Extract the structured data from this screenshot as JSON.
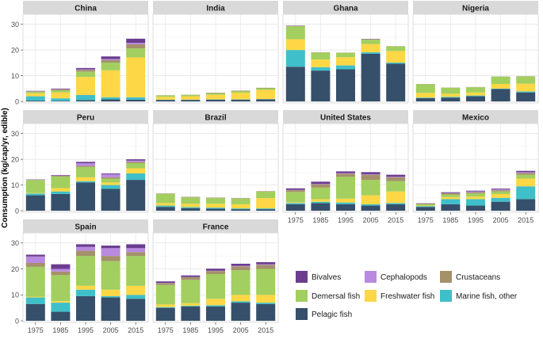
{
  "chart_data": {
    "type": "bar",
    "stacked": true,
    "faceted": true,
    "ylabel": "Consumption (kg/cap/yr, edible)",
    "xlabel": "",
    "categories": [
      "1975",
      "1985",
      "1995",
      "2005",
      "2015"
    ],
    "y_ticks": [
      "0",
      "10",
      "20",
      "30"
    ],
    "ylim": [
      0,
      30
    ],
    "grid": true,
    "legend_position": "bottom-right",
    "series_order": [
      "Pelagic fish",
      "Marine fish, other",
      "Freshwater fish",
      "Demersal fish",
      "Crustaceans",
      "Cephalopods",
      "Bivalves"
    ],
    "colors": {
      "Bivalves": "#6a3d8f",
      "Cephalopods": "#b98ae0",
      "Crustaceans": "#a4916a",
      "Demersal fish": "#a2cf5f",
      "Freshwater fish": "#fdd745",
      "Marine fish, other": "#3fbfc9",
      "Pelagic fish": "#36506b"
    },
    "legend": [
      {
        "name": "Bivalves",
        "color": "#6a3d8f"
      },
      {
        "name": "Cephalopods",
        "color": "#b98ae0"
      },
      {
        "name": "Crustaceans",
        "color": "#a4916a"
      },
      {
        "name": "Demersal fish",
        "color": "#a2cf5f"
      },
      {
        "name": "Freshwater fish",
        "color": "#fdd745"
      },
      {
        "name": "Marine fish, other",
        "color": "#3fbfc9"
      },
      {
        "name": "Pelagic fish",
        "color": "#36506b"
      }
    ],
    "panels": [
      {
        "title": "China",
        "data": [
          {
            "Pelagic fish": 0.3,
            "Marine fish, other": 1.7,
            "Freshwater fish": 1.2,
            "Demersal fish": 0.5,
            "Crustaceans": 0.2,
            "Cephalopods": 0.1,
            "Bivalves": 0.1
          },
          {
            "Pelagic fish": 0.2,
            "Marine fish, other": 1.0,
            "Freshwater fish": 2.3,
            "Demersal fish": 0.8,
            "Crustaceans": 0.4,
            "Cephalopods": 0.1,
            "Bivalves": 0.2
          },
          {
            "Pelagic fish": 0.5,
            "Marine fish, other": 2.0,
            "Freshwater fish": 7.0,
            "Demersal fish": 2.1,
            "Crustaceans": 0.7,
            "Cephalopods": 0.2,
            "Bivalves": 0.5
          },
          {
            "Pelagic fish": 0.8,
            "Marine fish, other": 0.8,
            "Freshwater fish": 10.5,
            "Demersal fish": 3.0,
            "Crustaceans": 1.0,
            "Cephalopods": 0.4,
            "Bivalves": 1.0
          },
          {
            "Pelagic fish": 0.7,
            "Marine fish, other": 0.9,
            "Freshwater fish": 15.5,
            "Demersal fish": 3.5,
            "Crustaceans": 1.6,
            "Cephalopods": 0.6,
            "Bivalves": 1.6
          }
        ]
      },
      {
        "title": "India",
        "data": [
          {
            "Pelagic fish": 0.6,
            "Marine fish, other": 0.1,
            "Freshwater fish": 1.1,
            "Demersal fish": 0.5,
            "Crustaceans": 0.1,
            "Cephalopods": 0.0,
            "Bivalves": 0.0
          },
          {
            "Pelagic fish": 0.6,
            "Marine fish, other": 0.1,
            "Freshwater fish": 1.3,
            "Demersal fish": 0.5,
            "Crustaceans": 0.1,
            "Cephalopods": 0.0,
            "Bivalves": 0.0
          },
          {
            "Pelagic fish": 0.7,
            "Marine fish, other": 0.1,
            "Freshwater fish": 1.8,
            "Demersal fish": 0.6,
            "Crustaceans": 0.2,
            "Cephalopods": 0.0,
            "Bivalves": 0.0
          },
          {
            "Pelagic fish": 0.7,
            "Marine fish, other": 0.1,
            "Freshwater fish": 2.6,
            "Demersal fish": 0.6,
            "Crustaceans": 0.2,
            "Cephalopods": 0.0,
            "Bivalves": 0.0
          },
          {
            "Pelagic fish": 0.8,
            "Marine fish, other": 0.1,
            "Freshwater fish": 3.6,
            "Demersal fish": 0.6,
            "Crustaceans": 0.2,
            "Cephalopods": 0.0,
            "Bivalves": 0.0
          }
        ]
      },
      {
        "title": "Ghana",
        "data": [
          {
            "Pelagic fish": 13.5,
            "Marine fish, other": 6.5,
            "Freshwater fish": 4.2,
            "Demersal fish": 5.0,
            "Crustaceans": 0.2,
            "Cephalopods": 0.0,
            "Bivalves": 0.1
          },
          {
            "Pelagic fish": 12.0,
            "Marine fish, other": 1.3,
            "Freshwater fish": 3.0,
            "Demersal fish": 2.7,
            "Crustaceans": 0.1,
            "Cephalopods": 0.0,
            "Bivalves": 0.0
          },
          {
            "Pelagic fish": 12.5,
            "Marine fish, other": 1.5,
            "Freshwater fish": 3.2,
            "Demersal fish": 1.7,
            "Crustaceans": 0.1,
            "Cephalopods": 0.0,
            "Bivalves": 0.0
          },
          {
            "Pelagic fish": 18.5,
            "Marine fish, other": 0.6,
            "Freshwater fish": 3.2,
            "Demersal fish": 1.7,
            "Crustaceans": 0.2,
            "Cephalopods": 0.0,
            "Bivalves": 0.1
          },
          {
            "Pelagic fish": 14.7,
            "Marine fish, other": 0.4,
            "Freshwater fish": 4.5,
            "Demersal fish": 1.8,
            "Crustaceans": 0.1,
            "Cephalopods": 0.0,
            "Bivalves": 0.0
          }
        ]
      },
      {
        "title": "Nigeria",
        "data": [
          {
            "Pelagic fish": 1.3,
            "Marine fish, other": 0.2,
            "Freshwater fish": 1.8,
            "Demersal fish": 3.4,
            "Crustaceans": 0.1,
            "Cephalopods": 0.0,
            "Bivalves": 0.0
          },
          {
            "Pelagic fish": 1.5,
            "Marine fish, other": 0.3,
            "Freshwater fish": 1.2,
            "Demersal fish": 2.3,
            "Crustaceans": 0.1,
            "Cephalopods": 0.0,
            "Bivalves": 0.0
          },
          {
            "Pelagic fish": 2.0,
            "Marine fish, other": 0.3,
            "Freshwater fish": 1.2,
            "Demersal fish": 2.0,
            "Crustaceans": 0.1,
            "Cephalopods": 0.0,
            "Bivalves": 0.0
          },
          {
            "Pelagic fish": 4.8,
            "Marine fish, other": 0.2,
            "Freshwater fish": 1.8,
            "Demersal fish": 2.8,
            "Crustaceans": 0.1,
            "Cephalopods": 0.0,
            "Bivalves": 0.0
          },
          {
            "Pelagic fish": 3.5,
            "Marine fish, other": 0.4,
            "Freshwater fish": 3.0,
            "Demersal fish": 2.8,
            "Crustaceans": 0.1,
            "Cephalopods": 0.0,
            "Bivalves": 0.0
          }
        ]
      },
      {
        "title": "Peru",
        "data": [
          {
            "Pelagic fish": 6.0,
            "Marine fish, other": 0.7,
            "Freshwater fish": 0.2,
            "Demersal fish": 5.0,
            "Crustaceans": 0.1,
            "Cephalopods": 0.1,
            "Bivalves": 0.1
          },
          {
            "Pelagic fish": 6.5,
            "Marine fish, other": 1.0,
            "Freshwater fish": 1.3,
            "Demersal fish": 4.5,
            "Crustaceans": 0.3,
            "Cephalopods": 0.1,
            "Bivalves": 0.2
          },
          {
            "Pelagic fish": 11.0,
            "Marine fish, other": 0.5,
            "Freshwater fish": 1.5,
            "Demersal fish": 4.0,
            "Crustaceans": 0.5,
            "Cephalopods": 1.0,
            "Bivalves": 0.5
          },
          {
            "Pelagic fish": 8.5,
            "Marine fish, other": 1.5,
            "Freshwater fish": 1.0,
            "Demersal fish": 1.5,
            "Crustaceans": 0.5,
            "Cephalopods": 1.2,
            "Bivalves": 0.3
          },
          {
            "Pelagic fish": 12.0,
            "Marine fish, other": 2.5,
            "Freshwater fish": 2.0,
            "Demersal fish": 2.0,
            "Crustaceans": 0.5,
            "Cephalopods": 0.5,
            "Bivalves": 0.5
          }
        ]
      },
      {
        "title": "Brazil",
        "data": [
          {
            "Pelagic fish": 1.5,
            "Marine fish, other": 0.5,
            "Freshwater fish": 1.0,
            "Demersal fish": 3.5,
            "Crustaceans": 0.2,
            "Cephalopods": 0.0,
            "Bivalves": 0.0
          },
          {
            "Pelagic fish": 1.0,
            "Marine fish, other": 0.4,
            "Freshwater fish": 1.3,
            "Demersal fish": 2.5,
            "Crustaceans": 0.2,
            "Cephalopods": 0.0,
            "Bivalves": 0.0
          },
          {
            "Pelagic fish": 0.8,
            "Marine fish, other": 0.4,
            "Freshwater fish": 1.5,
            "Demersal fish": 2.2,
            "Crustaceans": 0.2,
            "Cephalopods": 0.0,
            "Bivalves": 0.0
          },
          {
            "Pelagic fish": 0.6,
            "Marine fish, other": 0.3,
            "Freshwater fish": 1.6,
            "Demersal fish": 2.2,
            "Crustaceans": 0.2,
            "Cephalopods": 0.0,
            "Bivalves": 0.0
          },
          {
            "Pelagic fish": 0.6,
            "Marine fish, other": 0.3,
            "Freshwater fish": 4.0,
            "Demersal fish": 2.5,
            "Crustaceans": 0.2,
            "Cephalopods": 0.0,
            "Bivalves": 0.0
          }
        ]
      },
      {
        "title": "United States",
        "data": [
          {
            "Pelagic fish": 2.5,
            "Marine fish, other": 0.5,
            "Freshwater fish": 0.3,
            "Demersal fish": 4.0,
            "Crustaceans": 0.7,
            "Cephalopods": 0.1,
            "Bivalves": 0.6
          },
          {
            "Pelagic fish": 3.0,
            "Marine fish, other": 0.5,
            "Freshwater fish": 1.0,
            "Demersal fish": 4.5,
            "Crustaceans": 1.3,
            "Cephalopods": 0.1,
            "Bivalves": 0.9
          },
          {
            "Pelagic fish": 2.5,
            "Marine fish, other": 0.7,
            "Freshwater fish": 1.5,
            "Demersal fish": 8.5,
            "Crustaceans": 1.2,
            "Cephalopods": 0.2,
            "Bivalves": 0.7
          },
          {
            "Pelagic fish": 2.0,
            "Marine fish, other": 0.5,
            "Freshwater fish": 3.5,
            "Demersal fish": 6.0,
            "Crustaceans": 2.0,
            "Cephalopods": 0.2,
            "Bivalves": 0.8
          },
          {
            "Pelagic fish": 2.5,
            "Marine fish, other": 0.5,
            "Freshwater fish": 4.5,
            "Demersal fish": 4.0,
            "Crustaceans": 1.5,
            "Cephalopods": 0.2,
            "Bivalves": 0.8
          }
        ]
      },
      {
        "title": "Mexico",
        "data": [
          {
            "Pelagic fish": 1.5,
            "Marine fish, other": 0.3,
            "Freshwater fish": 0.2,
            "Demersal fish": 0.5,
            "Crustaceans": 0.3,
            "Cephalopods": 0.0,
            "Bivalves": 0.1
          },
          {
            "Pelagic fish": 2.5,
            "Marine fish, other": 2.0,
            "Freshwater fish": 0.8,
            "Demersal fish": 1.0,
            "Crustaceans": 0.5,
            "Cephalopods": 0.1,
            "Bivalves": 0.3
          },
          {
            "Pelagic fish": 2.0,
            "Marine fish, other": 2.5,
            "Freshwater fish": 1.0,
            "Demersal fish": 1.2,
            "Crustaceans": 0.5,
            "Cephalopods": 0.3,
            "Bivalves": 0.3
          },
          {
            "Pelagic fish": 3.5,
            "Marine fish, other": 1.5,
            "Freshwater fish": 1.5,
            "Demersal fish": 1.0,
            "Crustaceans": 0.5,
            "Cephalopods": 0.3,
            "Bivalves": 0.3
          },
          {
            "Pelagic fish": 4.5,
            "Marine fish, other": 5.0,
            "Freshwater fish": 3.0,
            "Demersal fish": 1.5,
            "Crustaceans": 0.7,
            "Cephalopods": 0.3,
            "Bivalves": 0.5
          }
        ]
      },
      {
        "title": "Spain",
        "data": [
          {
            "Pelagic fish": 6.5,
            "Marine fish, other": 2.5,
            "Freshwater fish": 0.3,
            "Demersal fish": 11.5,
            "Crustaceans": 1.5,
            "Cephalopods": 2.5,
            "Bivalves": 0.7
          },
          {
            "Pelagic fish": 3.5,
            "Marine fish, other": 3.5,
            "Freshwater fish": 0.6,
            "Demersal fish": 10.0,
            "Crustaceans": 1.4,
            "Cephalopods": 1.0,
            "Bivalves": 1.8
          },
          {
            "Pelagic fish": 9.5,
            "Marine fish, other": 2.5,
            "Freshwater fish": 1.5,
            "Demersal fish": 11.5,
            "Crustaceans": 2.0,
            "Cephalopods": 1.5,
            "Bivalves": 1.0
          },
          {
            "Pelagic fish": 9.0,
            "Marine fish, other": 0.5,
            "Freshwater fish": 2.5,
            "Demersal fish": 11.0,
            "Crustaceans": 2.0,
            "Cephalopods": 3.0,
            "Bivalves": 1.0
          },
          {
            "Pelagic fish": 8.5,
            "Marine fish, other": 1.5,
            "Freshwater fish": 3.5,
            "Demersal fish": 11.5,
            "Crustaceans": 1.5,
            "Cephalopods": 1.5,
            "Bivalves": 1.5
          }
        ]
      },
      {
        "title": "France",
        "data": [
          {
            "Pelagic fish": 5.0,
            "Marine fish, other": 0.3,
            "Freshwater fish": 1.0,
            "Demersal fish": 7.5,
            "Crustaceans": 0.7,
            "Cephalopods": 0.1,
            "Bivalves": 0.6
          },
          {
            "Pelagic fish": 5.5,
            "Marine fish, other": 0.3,
            "Freshwater fish": 1.0,
            "Demersal fish": 9.0,
            "Crustaceans": 1.0,
            "Cephalopods": 0.1,
            "Bivalves": 0.6
          },
          {
            "Pelagic fish": 5.5,
            "Marine fish, other": 0.5,
            "Freshwater fish": 2.5,
            "Demersal fish": 9.5,
            "Crustaceans": 1.2,
            "Cephalopods": 0.1,
            "Bivalves": 0.8
          },
          {
            "Pelagic fish": 7.0,
            "Marine fish, other": 0.5,
            "Freshwater fish": 2.5,
            "Demersal fish": 9.5,
            "Crustaceans": 1.5,
            "Cephalopods": 0.2,
            "Bivalves": 0.8
          },
          {
            "Pelagic fish": 6.5,
            "Marine fish, other": 0.5,
            "Freshwater fish": 3.0,
            "Demersal fish": 10.0,
            "Crustaceans": 1.6,
            "Cephalopods": 0.2,
            "Bivalves": 0.8
          }
        ]
      }
    ]
  }
}
